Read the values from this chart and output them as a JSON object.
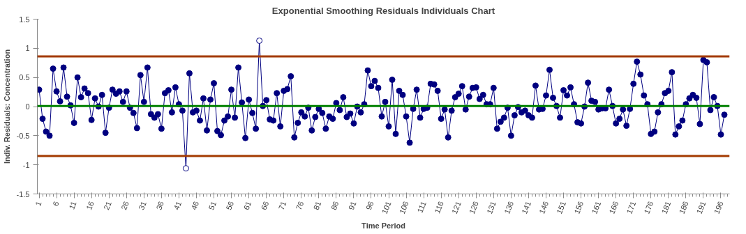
{
  "chart_data": {
    "type": "line",
    "title": "Exponential Smoothing Residuals Individuals Chart",
    "xlabel": "Time Period",
    "ylabel": "Indiv. Residuals: Concentration",
    "x": [
      1,
      2,
      3,
      4,
      5,
      6,
      7,
      8,
      9,
      10,
      11,
      12,
      13,
      14,
      15,
      16,
      17,
      18,
      19,
      20,
      21,
      22,
      23,
      24,
      25,
      26,
      27,
      28,
      29,
      30,
      31,
      32,
      33,
      34,
      35,
      36,
      37,
      38,
      39,
      40,
      41,
      42,
      43,
      44,
      45,
      46,
      47,
      48,
      49,
      50,
      51,
      52,
      53,
      54,
      55,
      56,
      57,
      58,
      59,
      60,
      61,
      62,
      63,
      64,
      65,
      66,
      67,
      68,
      69,
      70,
      71,
      72,
      73,
      74,
      75,
      76,
      77,
      78,
      79,
      80,
      81,
      82,
      83,
      84,
      85,
      86,
      87,
      88,
      89,
      90,
      91,
      92,
      93,
      94,
      95,
      96,
      97,
      98,
      99,
      100,
      101,
      102,
      103,
      104,
      105,
      106,
      107,
      108,
      109,
      110,
      111,
      112,
      113,
      114,
      115,
      116,
      117,
      118,
      119,
      120,
      121,
      122,
      123,
      124,
      125,
      126,
      127,
      128,
      129,
      130,
      131,
      132,
      133,
      134,
      135,
      136,
      137,
      138,
      139,
      140,
      141,
      142,
      143,
      144,
      145,
      146,
      147,
      148,
      149,
      150,
      151,
      152,
      153,
      154,
      155,
      156,
      157,
      158,
      159,
      160,
      161,
      162,
      163,
      164,
      165,
      166,
      167,
      168,
      169,
      170,
      171,
      172,
      173,
      174,
      175,
      176,
      177,
      178,
      179,
      180,
      181,
      182,
      183,
      184,
      185,
      186,
      187,
      188,
      189,
      190,
      191,
      192,
      193,
      194,
      195,
      196,
      197
    ],
    "series": [
      {
        "color": "#000080",
        "values": [
          0.29,
          -0.21,
          -0.43,
          -0.5,
          0.65,
          0.26,
          0.09,
          0.67,
          0.17,
          0.02,
          -0.28,
          0.5,
          0.16,
          0.31,
          0.23,
          -0.23,
          0.14,
          0.0,
          0.2,
          -0.45,
          -0.02,
          0.29,
          0.22,
          0.26,
          0.08,
          0.26,
          -0.02,
          -0.11,
          -0.37,
          0.54,
          0.08,
          0.67,
          -0.13,
          -0.19,
          -0.13,
          -0.38,
          0.23,
          0.28,
          -0.1,
          0.33,
          0.04,
          -0.07,
          -1.06,
          0.57,
          -0.1,
          -0.07,
          -0.24,
          0.14,
          -0.41,
          0.12,
          0.4,
          -0.42,
          -0.49,
          -0.24,
          -0.17,
          0.29,
          -0.19,
          0.67,
          0.07,
          -0.54,
          0.12,
          -0.11,
          -0.38,
          1.13,
          0.01,
          0.11,
          -0.22,
          -0.24,
          0.23,
          -0.34,
          0.27,
          0.3,
          0.52,
          -0.53,
          -0.28,
          -0.1,
          -0.17,
          -0.02,
          -0.41,
          -0.18,
          -0.04,
          -0.11,
          -0.38,
          -0.17,
          -0.21,
          0.06,
          -0.06,
          0.16,
          -0.18,
          -0.12,
          -0.29,
          0.0,
          -0.1,
          0.04,
          0.62,
          0.35,
          0.44,
          0.32,
          -0.17,
          0.08,
          -0.34,
          0.46,
          -0.47,
          0.27,
          0.2,
          -0.17,
          -0.62,
          -0.04,
          0.29,
          -0.19,
          -0.04,
          -0.02,
          0.39,
          0.38,
          0.27,
          -0.21,
          -0.05,
          -0.53,
          -0.07,
          0.16,
          0.22,
          0.35,
          -0.05,
          0.17,
          0.32,
          0.33,
          0.13,
          0.2,
          0.04,
          0.04,
          0.32,
          -0.38,
          -0.26,
          -0.19,
          -0.02,
          -0.5,
          -0.15,
          -0.01,
          -0.1,
          -0.07,
          -0.15,
          -0.19,
          0.36,
          -0.05,
          -0.04,
          0.19,
          0.63,
          0.15,
          0.01,
          -0.19,
          0.28,
          0.19,
          0.33,
          0.04,
          -0.27,
          -0.29,
          0.0,
          0.41,
          0.1,
          0.08,
          -0.05,
          -0.03,
          -0.03,
          0.29,
          0.01,
          -0.29,
          -0.21,
          -0.05,
          -0.33,
          -0.04,
          0.39,
          0.77,
          0.55,
          0.19,
          0.04,
          -0.47,
          -0.43,
          -0.1,
          0.04,
          0.23,
          0.27,
          0.59,
          -0.48,
          -0.34,
          -0.24,
          0.04,
          0.14,
          0.2,
          0.15,
          -0.3,
          0.8,
          0.76,
          -0.06,
          0.16,
          0.01,
          -0.48,
          -0.14
        ]
      }
    ],
    "marker": "circle",
    "line_style": "solid",
    "grid": false,
    "xlim": [
      0.5,
      198.5
    ],
    "xticks": [
      1,
      6,
      11,
      16,
      21,
      26,
      31,
      36,
      41,
      46,
      51,
      56,
      61,
      66,
      71,
      76,
      81,
      86,
      91,
      96,
      101,
      106,
      111,
      116,
      121,
      126,
      131,
      136,
      141,
      146,
      151,
      156,
      161,
      166,
      171,
      176,
      181,
      186,
      191,
      196
    ],
    "ylim": [
      -1.5,
      1.5
    ],
    "yticks": [
      -1.5,
      -1,
      -0.5,
      0,
      0.5,
      1,
      1.5
    ],
    "ref_lines": [
      {
        "axis": "y",
        "value": 0.86,
        "color": "#a33a00"
      },
      {
        "axis": "y",
        "value": -0.85,
        "color": "#a33a00"
      },
      {
        "axis": "y",
        "value": 0.01,
        "color": "#008000"
      }
    ]
  }
}
